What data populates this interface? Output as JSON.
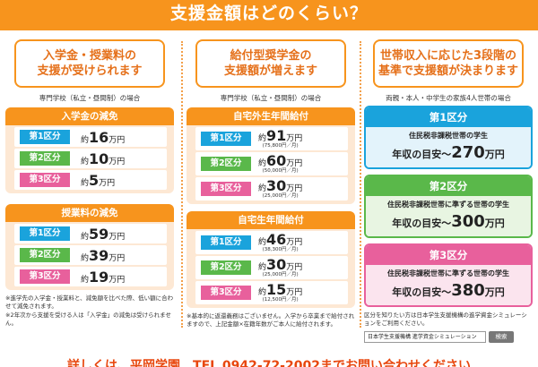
{
  "header": {
    "title": "支援金額はどのくらい？"
  },
  "col1": {
    "title_line1": "入学金・授業料の",
    "title_line2": "支援が受けられます",
    "subtitle": "専門学校（私立・昼間制）の場合",
    "panel1": {
      "heading": "入学金の減免",
      "rows": [
        {
          "tag": "第1区分",
          "prefix": "約",
          "value": "16",
          "unit": "万円"
        },
        {
          "tag": "第2区分",
          "prefix": "約",
          "value": "10",
          "unit": "万円"
        },
        {
          "tag": "第3区分",
          "prefix": "約",
          "value": "5",
          "unit": "万円"
        }
      ]
    },
    "panel2": {
      "heading": "授業料の減免",
      "rows": [
        {
          "tag": "第1区分",
          "prefix": "約",
          "value": "59",
          "unit": "万円"
        },
        {
          "tag": "第2区分",
          "prefix": "約",
          "value": "39",
          "unit": "万円"
        },
        {
          "tag": "第3区分",
          "prefix": "約",
          "value": "19",
          "unit": "万円"
        }
      ]
    },
    "note1": "※進学先の入学金・授業料と、減免額を比べた際、低い額に合わせて減免されます。",
    "note2": "※2年次から支援を受ける人は「入学金」の減免は受けられません。"
  },
  "col2": {
    "title_line1": "給付型奨学金の",
    "title_line2": "支援額が増えます",
    "subtitle": "専門学校（私立・昼間制）の場合",
    "panel1": {
      "heading": "自宅外生年間給付",
      "rows": [
        {
          "tag": "第1区分",
          "prefix": "約",
          "value": "91",
          "unit": "万円",
          "monthly": "(75,800円／月)"
        },
        {
          "tag": "第2区分",
          "prefix": "約",
          "value": "60",
          "unit": "万円",
          "monthly": "(50,000円／月)"
        },
        {
          "tag": "第3区分",
          "prefix": "約",
          "value": "30",
          "unit": "万円",
          "monthly": "(25,000円／月)"
        }
      ]
    },
    "panel2": {
      "heading": "自宅生年間給付",
      "rows": [
        {
          "tag": "第1区分",
          "prefix": "約",
          "value": "46",
          "unit": "万円",
          "monthly": "(38,300円／月)"
        },
        {
          "tag": "第2区分",
          "prefix": "約",
          "value": "30",
          "unit": "万円",
          "monthly": "(25,000円／月)"
        },
        {
          "tag": "第3区分",
          "prefix": "約",
          "value": "15",
          "unit": "万円",
          "monthly": "(12,500円／月)"
        }
      ]
    },
    "note": "※基本的に返還義務はございません。入学から卒業まで給付されますので、上記金額×在籍年数がご本人に給付されます。"
  },
  "col3": {
    "title_line1": "世帯収入に応じた3段階の",
    "title_line2": "基準で支援額が決まります",
    "subtitle": "両親・本人・中学生の家族4人世帯の場合",
    "categories": [
      {
        "heading": "第1区分",
        "desc": "住民税非課税世帯の学生",
        "income_label": "年収の目安～",
        "income_value": "270",
        "income_unit": "万円"
      },
      {
        "heading": "第2区分",
        "desc": "住民税非課税世帯に準ずる世帯の学生",
        "income_label": "年収の目安～",
        "income_value": "300",
        "income_unit": "万円"
      },
      {
        "heading": "第3区分",
        "desc": "住民税非課税世帯に準ずる世帯の学生",
        "income_label": "年収の目安～",
        "income_value": "380",
        "income_unit": "万円"
      }
    ],
    "note": "区分を知りたい方は日本学生支援機構の進学資金シミュレーションをご利用ください。",
    "search_text": "日本学生支援機構 進学資金シミュレーション",
    "search_button": "検索"
  },
  "footer": {
    "text": "詳しくは、平岡学園　TEL 0942-72-2002までお問い合わせください"
  }
}
